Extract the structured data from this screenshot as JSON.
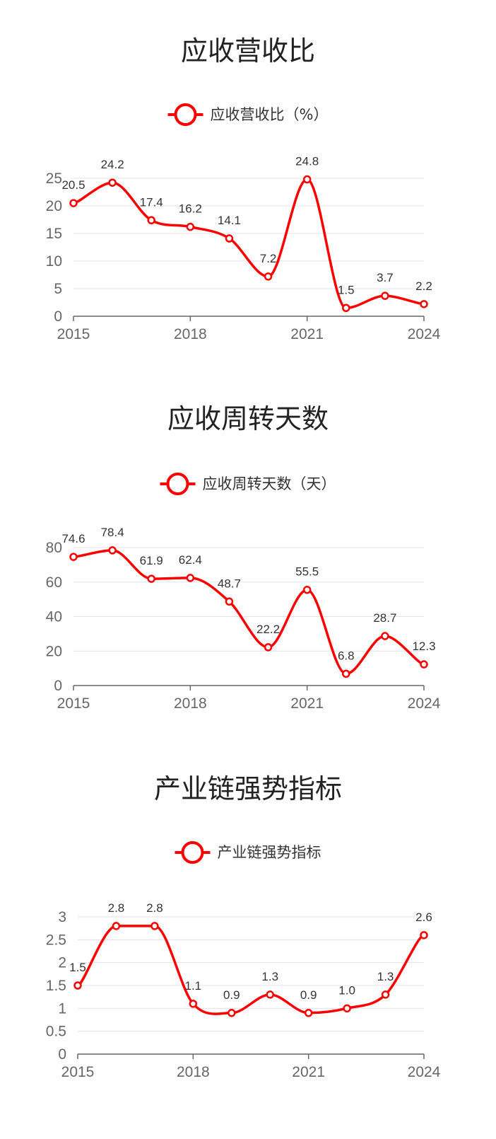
{
  "chart_data": [
    {
      "type": "line",
      "title": "应收营收比",
      "x": [
        2015,
        2016,
        2017,
        2018,
        2019,
        2020,
        2021,
        2022,
        2023,
        2024
      ],
      "x_tick_labels": [
        "2015",
        "2018",
        "2021",
        "2024"
      ],
      "series": [
        {
          "name": "应收营收比（%）",
          "values": [
            20.5,
            24.2,
            17.4,
            16.2,
            14.1,
            7.2,
            24.8,
            1.5,
            3.7,
            2.2
          ]
        }
      ],
      "value_labels": [
        "20.5",
        "24.2",
        "17.4",
        "16.2",
        "14.1",
        "7.2",
        "24.8",
        "1.5",
        "3.7",
        "2.2"
      ],
      "y_ticks": [
        0,
        5,
        10,
        15,
        20,
        25
      ],
      "ylim": [
        0,
        25
      ],
      "grid": true,
      "legend": "top-center",
      "color": "#ff0000",
      "smooth": true
    },
    {
      "type": "line",
      "title": "应收周转天数",
      "x": [
        2015,
        2016,
        2017,
        2018,
        2019,
        2020,
        2021,
        2022,
        2023,
        2024
      ],
      "x_tick_labels": [
        "2015",
        "2018",
        "2021",
        "2024"
      ],
      "series": [
        {
          "name": "应收周转天数（天）",
          "values": [
            74.6,
            78.4,
            61.9,
            62.4,
            48.7,
            22.2,
            55.5,
            6.8,
            28.7,
            12.3
          ]
        }
      ],
      "value_labels": [
        "74.6",
        "78.4",
        "61.9",
        "62.4",
        "48.7",
        "22.2",
        "55.5",
        "6.8",
        "28.7",
        "12.3"
      ],
      "y_ticks": [
        0,
        20,
        40,
        60,
        80
      ],
      "ylim": [
        0,
        80
      ],
      "grid": true,
      "legend": "top-center",
      "color": "#ff0000",
      "smooth": true
    },
    {
      "type": "line",
      "title": "产业链强势指标",
      "x": [
        2015,
        2016,
        2017,
        2018,
        2019,
        2020,
        2021,
        2022,
        2023,
        2024
      ],
      "x_tick_labels": [
        "2015",
        "2018",
        "2021",
        "2024"
      ],
      "series": [
        {
          "name": "产业链强势指标",
          "values": [
            1.5,
            2.8,
            2.8,
            1.1,
            0.9,
            1.3,
            0.9,
            1.0,
            1.3,
            2.6
          ]
        }
      ],
      "value_labels": [
        "1.5",
        "2.8",
        "2.8",
        "1.1",
        "0.9",
        "1.3",
        "0.9",
        "1.0",
        "1.3",
        "2.6"
      ],
      "y_ticks": [
        0,
        0.5,
        1,
        1.5,
        2,
        2.5,
        3
      ],
      "ylim": [
        0,
        3
      ],
      "grid": true,
      "legend": "top-center",
      "color": "#ff0000",
      "smooth": true
    }
  ]
}
